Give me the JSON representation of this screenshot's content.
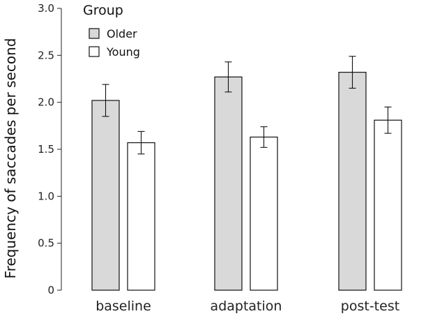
{
  "chart_data": {
    "type": "bar",
    "title": "",
    "xlabel": "",
    "ylabel": "Frequency of saccades per second",
    "ylim": [
      0,
      3.0
    ],
    "yticks": [
      0,
      0.5,
      1.0,
      1.5,
      2.0,
      2.5,
      3.0
    ],
    "ytick_labels": [
      "0",
      "0.5",
      "1.0",
      "1.5",
      "2.0",
      "2.5",
      "3.0"
    ],
    "categories": [
      "baseline",
      "adaptation",
      "post-test"
    ],
    "legend_title": "Group",
    "series": [
      {
        "name": "Older",
        "color": "#d9d9d9",
        "values": [
          2.02,
          2.27,
          2.32
        ],
        "errors": [
          0.17,
          0.16,
          0.17
        ]
      },
      {
        "name": "Young",
        "color": "#ffffff",
        "values": [
          1.57,
          1.63,
          1.81
        ],
        "errors": [
          0.12,
          0.11,
          0.14
        ]
      }
    ]
  }
}
